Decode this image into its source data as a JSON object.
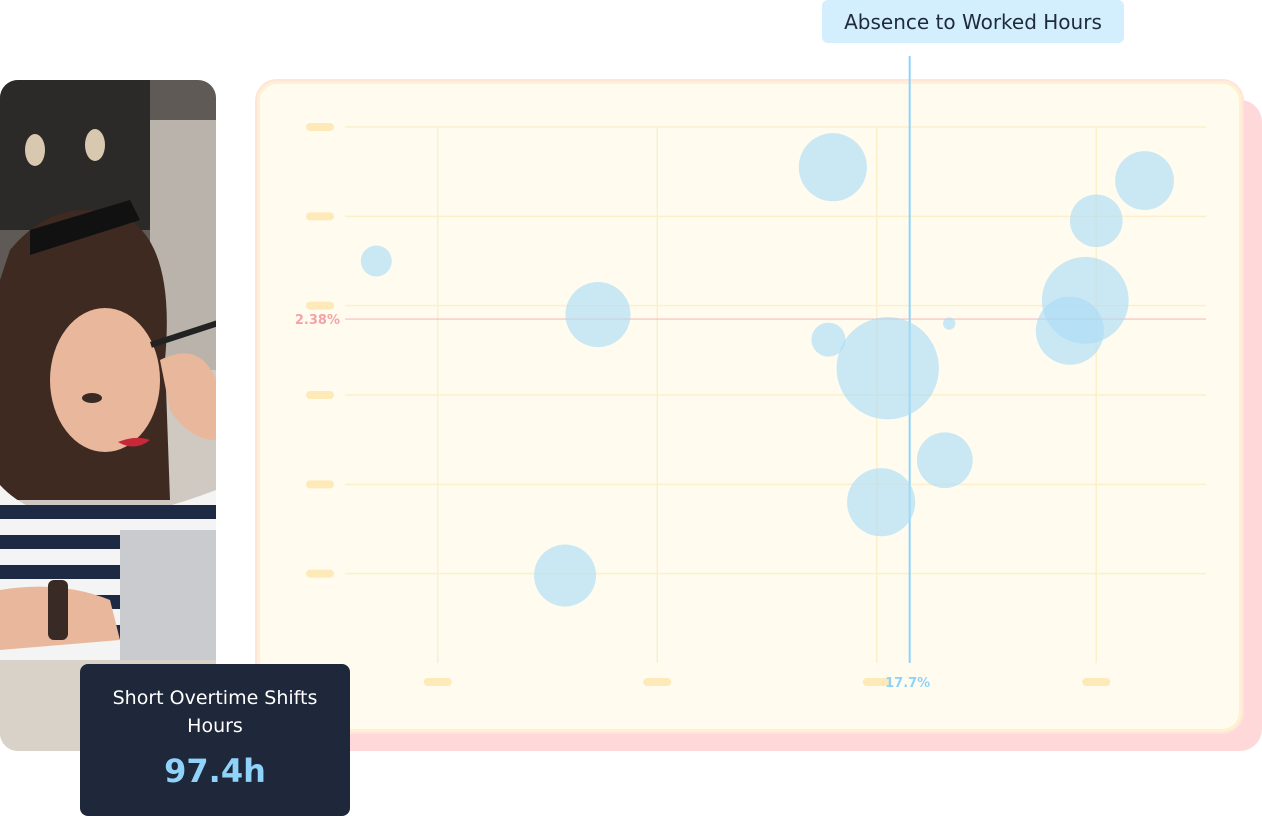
{
  "metric_tag": {
    "label": "Absence to Worked Hours"
  },
  "stat_card": {
    "title": "Short Overtime Shifts Hours",
    "value": "97.4h"
  },
  "colors": {
    "bubble": "#a9dcf6",
    "x_reference": "#8fd3fb",
    "y_reference": "#f4a3a8",
    "stat_value": "#8fd3fb",
    "card_background": "#fffcef",
    "card_shadow": "#ffd9d9"
  },
  "photo": {
    "description_icon": "woman-at-laptop-photo"
  },
  "chart_data": {
    "type": "scatter",
    "title": "",
    "xlabel": "",
    "ylabel": "",
    "xlim": [
      0,
      40
    ],
    "ylim": [
      0,
      6
    ],
    "grid": true,
    "reference_lines": {
      "x": {
        "value": 26.5,
        "label": "17.7%"
      },
      "y": {
        "value": 3.85,
        "label": "2.38%"
      }
    },
    "series": [
      {
        "points": [
          {
            "x": 2.2,
            "y": 4.5,
            "size": 1.0
          },
          {
            "x": 12.3,
            "y": 3.9,
            "size": 2.1
          },
          {
            "x": 10.8,
            "y": 0.98,
            "size": 2.0
          },
          {
            "x": 23.0,
            "y": 5.55,
            "size": 2.2
          },
          {
            "x": 22.8,
            "y": 3.62,
            "size": 1.1
          },
          {
            "x": 25.5,
            "y": 3.3,
            "size": 3.3
          },
          {
            "x": 28.3,
            "y": 3.8,
            "size": 0.4
          },
          {
            "x": 28.1,
            "y": 2.27,
            "size": 1.8
          },
          {
            "x": 25.2,
            "y": 1.8,
            "size": 2.2
          },
          {
            "x": 34.5,
            "y": 4.06,
            "size": 2.8
          },
          {
            "x": 33.8,
            "y": 3.72,
            "size": 2.2
          },
          {
            "x": 35.0,
            "y": 4.95,
            "size": 1.7
          },
          {
            "x": 37.2,
            "y": 5.4,
            "size": 1.9
          }
        ]
      }
    ]
  }
}
